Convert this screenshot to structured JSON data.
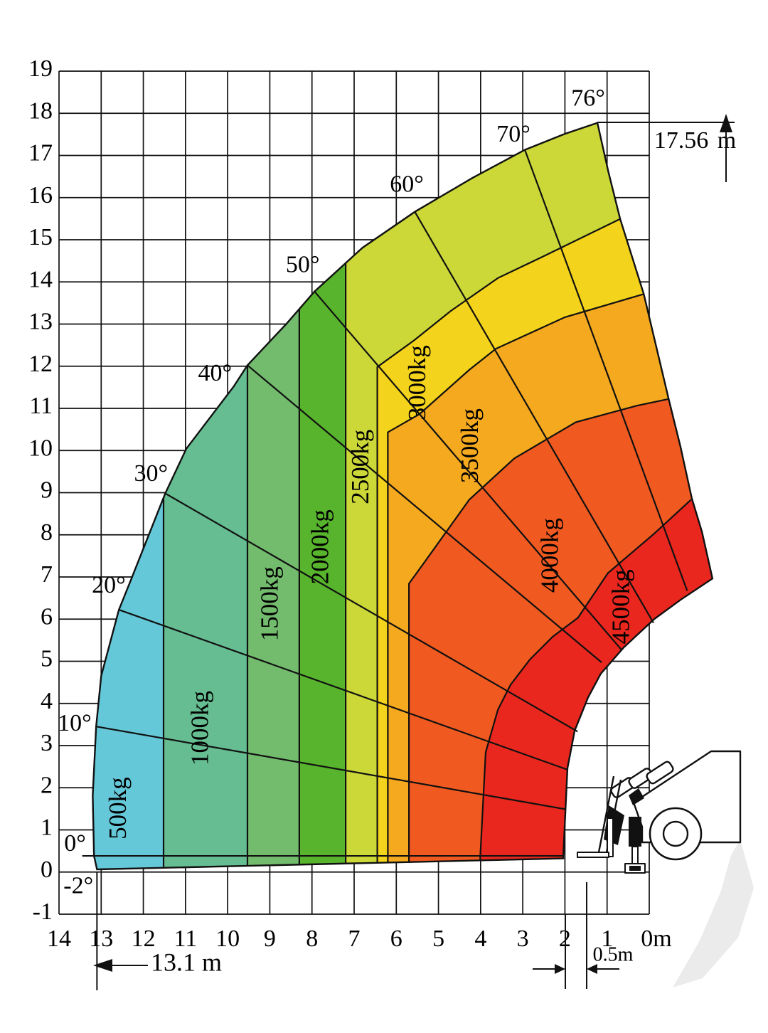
{
  "chart_data": {
    "type": "area",
    "subtype": "telehandler-load-capacity-fan-chart",
    "title": "",
    "xlabel": "",
    "ylabel": "",
    "x_axis": {
      "unit": "m",
      "tick_values": [
        14,
        13,
        12,
        11,
        10,
        9,
        8,
        7,
        6,
        5,
        4,
        3,
        2,
        1,
        0
      ],
      "tick_labels": [
        "14",
        "13",
        "12",
        "11",
        "10",
        "9",
        "8",
        "7",
        "6",
        "5",
        "4",
        "3",
        "2",
        "1",
        "0m"
      ],
      "range": [
        14,
        0
      ],
      "direction": "right-to-left"
    },
    "y_axis": {
      "unit": "m",
      "tick_values": [
        19,
        18,
        17,
        16,
        15,
        14,
        13,
        12,
        11,
        10,
        9,
        8,
        7,
        6,
        5,
        4,
        3,
        2,
        1,
        0,
        -1
      ],
      "tick_labels": [
        "19",
        "18",
        "17",
        "16",
        "15",
        "14",
        "13",
        "12",
        "11",
        "10",
        "9",
        "8",
        "7",
        "6",
        "5",
        "4",
        "3",
        "2",
        "1",
        "0",
        "-1"
      ],
      "range": [
        -1,
        19
      ]
    },
    "grid": true,
    "fan_outline": [
      [
        13.1,
        0.05
      ],
      [
        13.17,
        0.37
      ],
      [
        13.2,
        1.8
      ],
      [
        13.12,
        3.44
      ],
      [
        13.0,
        4.64
      ],
      [
        12.58,
        6.21
      ],
      [
        12.31,
        6.88
      ],
      [
        11.48,
        8.97
      ],
      [
        10.98,
        10.03
      ],
      [
        9.86,
        11.5
      ],
      [
        9.53,
        12.01
      ],
      [
        8.6,
        13.0
      ],
      [
        7.94,
        13.76
      ],
      [
        6.8,
        14.8
      ],
      [
        5.56,
        15.65
      ],
      [
        4.2,
        16.45
      ],
      [
        2.95,
        17.12
      ],
      [
        2.0,
        17.5
      ],
      [
        1.23,
        17.76
      ],
      [
        0.97,
        16.6
      ],
      [
        0.69,
        15.48
      ],
      [
        0.13,
        13.7
      ],
      [
        -0.46,
        11.21
      ],
      [
        -0.74,
        10.08
      ],
      [
        -1.01,
        8.85
      ],
      [
        -1.25,
        8.06
      ],
      [
        -1.5,
        6.95
      ],
      [
        -0.75,
        6.45
      ],
      [
        -0.12,
        5.99
      ],
      [
        0.61,
        5.31
      ],
      [
        1.15,
        4.69
      ],
      [
        1.45,
        4.13
      ],
      [
        1.77,
        3.34
      ],
      [
        1.94,
        2.45
      ],
      [
        2.04,
        0.37
      ],
      [
        2.04,
        0.31
      ]
    ],
    "zones": [
      {
        "capacity": "500kg",
        "color": "#65c8d8",
        "label_pos": [
          12.55,
          1.5
        ],
        "paint": "fan"
      },
      {
        "capacity": "1000kg",
        "color": "#66bd92",
        "label_pos": [
          10.6,
          3.4
        ],
        "paint": [
          [
            11.52,
            -1
          ],
          [
            11.52,
            19
          ],
          [
            -6,
            19
          ],
          [
            -6,
            -1
          ]
        ]
      },
      {
        "capacity": "1500kg",
        "color": "#73bc6e",
        "label_pos": [
          8.95,
          6.35
        ],
        "paint": [
          [
            9.53,
            -1
          ],
          [
            9.53,
            19
          ],
          [
            -6,
            19
          ],
          [
            -6,
            -1
          ]
        ]
      },
      {
        "capacity": "2000kg",
        "color": "#58b42c",
        "label_pos": [
          7.75,
          7.7
        ],
        "paint": [
          [
            8.3,
            -1
          ],
          [
            8.3,
            19
          ],
          [
            -6,
            19
          ],
          [
            -6,
            -1
          ]
        ]
      },
      {
        "capacity": "2500kg",
        "color": "#cbd838",
        "label_pos": [
          6.8,
          9.6
        ],
        "paint": [
          [
            7.2,
            -1
          ],
          [
            7.2,
            19
          ],
          [
            -6,
            19
          ],
          [
            -6,
            -1
          ]
        ]
      },
      {
        "capacity": "3000kg",
        "color": "#f3d31b",
        "label_pos": [
          5.45,
          11.6
        ],
        "paint": [
          [
            6.45,
            -1
          ],
          [
            6.45,
            11.97
          ],
          [
            5.58,
            12.6
          ],
          [
            4.72,
            13.29
          ],
          [
            3.59,
            14.08
          ],
          [
            2.5,
            14.6
          ],
          [
            0.69,
            15.48
          ],
          [
            -6,
            15.48
          ],
          [
            -6,
            -1
          ]
        ]
      },
      {
        "capacity": "3500kg",
        "color": "#f5a91e",
        "label_pos": [
          4.2,
          10.1
        ],
        "paint": [
          [
            6.2,
            -1
          ],
          [
            6.2,
            10.42
          ],
          [
            5.45,
            10.85
          ],
          [
            4.27,
            11.9
          ],
          [
            3.64,
            12.4
          ],
          [
            2.0,
            13.15
          ],
          [
            0.13,
            13.7
          ],
          [
            -6,
            13.7
          ],
          [
            -6,
            -1
          ]
        ]
      },
      {
        "capacity": "4000kg",
        "color": "#f05a21",
        "label_pos": [
          2.3,
          7.5
        ],
        "paint": [
          [
            5.7,
            -1
          ],
          [
            5.7,
            6.83
          ],
          [
            5.33,
            7.34
          ],
          [
            4.27,
            8.82
          ],
          [
            3.2,
            9.8
          ],
          [
            1.74,
            10.66
          ],
          [
            0.3,
            11.05
          ],
          [
            -0.46,
            11.21
          ],
          [
            -6,
            11.21
          ],
          [
            -6,
            -1
          ]
        ]
      },
      {
        "capacity": "4500kg",
        "color": "#e9271e",
        "label_pos": [
          0.62,
          6.28
        ],
        "paint": [
          [
            4.01,
            -1
          ],
          [
            4.01,
            0.34
          ],
          [
            3.88,
            2.83
          ],
          [
            3.59,
            3.84
          ],
          [
            3.29,
            4.43
          ],
          [
            2.83,
            5.03
          ],
          [
            2.29,
            5.57
          ],
          [
            1.69,
            6.02
          ],
          [
            0.98,
            7.08
          ],
          [
            -0.1,
            8.0
          ],
          [
            -0.99,
            8.82
          ],
          [
            -6,
            8.82
          ],
          [
            -6,
            -1
          ]
        ]
      }
    ],
    "zone_boundaries": [
      [
        [
          11.52,
          -0.5
        ],
        [
          11.52,
          9.1
        ]
      ],
      [
        [
          9.53,
          -0.5
        ],
        [
          9.53,
          12.1
        ]
      ],
      [
        [
          8.3,
          -0.5
        ],
        [
          8.3,
          13.55
        ]
      ],
      [
        [
          7.2,
          -0.5
        ],
        [
          7.2,
          14.6
        ]
      ],
      [
        [
          6.45,
          -0.5
        ],
        [
          6.45,
          11.97
        ],
        [
          5.58,
          12.6
        ],
        [
          4.72,
          13.29
        ],
        [
          3.59,
          14.08
        ],
        [
          2.5,
          14.6
        ],
        [
          0.69,
          15.48
        ]
      ],
      [
        [
          6.2,
          -0.5
        ],
        [
          6.2,
          10.42
        ],
        [
          5.45,
          10.85
        ],
        [
          4.27,
          11.9
        ],
        [
          3.64,
          12.4
        ],
        [
          2.0,
          13.15
        ],
        [
          0.13,
          13.7
        ]
      ],
      [
        [
          5.7,
          -0.5
        ],
        [
          5.7,
          6.83
        ],
        [
          5.33,
          7.34
        ],
        [
          4.27,
          8.82
        ],
        [
          3.2,
          9.8
        ],
        [
          1.74,
          10.66
        ],
        [
          0.3,
          11.05
        ],
        [
          -0.46,
          11.21
        ]
      ],
      [
        [
          4.01,
          -0.5
        ],
        [
          4.01,
          0.34
        ],
        [
          3.88,
          2.83
        ],
        [
          3.59,
          3.84
        ],
        [
          3.29,
          4.43
        ],
        [
          2.83,
          5.03
        ],
        [
          2.29,
          5.57
        ],
        [
          1.69,
          6.02
        ],
        [
          0.98,
          7.08
        ],
        [
          -0.1,
          8.0
        ],
        [
          -0.99,
          8.82
        ]
      ]
    ],
    "boom_angle_lines": [
      {
        "deg": 0,
        "from": [
          13.45,
          0.37
        ],
        "to": [
          2.04,
          0.37
        ]
      },
      {
        "deg": 10,
        "from": [
          13.12,
          3.44
        ],
        "to": [
          2.0,
          1.48
        ]
      },
      {
        "deg": 20,
        "from": [
          12.58,
          6.21
        ],
        "to": [
          1.95,
          2.42
        ]
      },
      {
        "deg": 30,
        "from": [
          11.48,
          8.97
        ],
        "to": [
          1.7,
          3.32
        ]
      },
      {
        "deg": 40,
        "from": [
          9.53,
          12.01
        ],
        "to": [
          1.13,
          4.96
        ]
      },
      {
        "deg": 50,
        "from": [
          7.94,
          13.76
        ],
        "to": [
          0.65,
          5.25
        ]
      },
      {
        "deg": 60,
        "from": [
          5.56,
          15.65
        ],
        "to": [
          -0.1,
          5.9
        ]
      },
      {
        "deg": 70,
        "from": [
          2.95,
          17.12
        ],
        "to": [
          -0.9,
          6.66
        ]
      }
    ],
    "angle_labels": [
      {
        "text": "-2°",
        "pos": [
          13.54,
          -0.38
        ]
      },
      {
        "text": "0°",
        "pos": [
          13.62,
          0.62
        ]
      },
      {
        "text": "10°",
        "pos": [
          13.63,
          3.47
        ]
      },
      {
        "text": "20°",
        "pos": [
          12.82,
          6.75
        ]
      },
      {
        "text": "30°",
        "pos": [
          11.82,
          9.4
        ]
      },
      {
        "text": "40°",
        "pos": [
          10.3,
          11.78
        ]
      },
      {
        "text": "50°",
        "pos": [
          8.22,
          14.35
        ]
      },
      {
        "text": "60°",
        "pos": [
          5.75,
          16.26
        ]
      },
      {
        "text": "70°",
        "pos": [
          3.22,
          17.45
        ]
      },
      {
        "text": "76°",
        "pos": [
          1.45,
          18.3
        ]
      }
    ],
    "annotations": {
      "max_height": {
        "value": "17.56",
        "unit": "m"
      },
      "max_reach": {
        "text": "13.1 m",
        "at_x": 13.1
      },
      "front_offset": {
        "text": "0.5m",
        "between_x": [
          2.0,
          1.5
        ]
      }
    }
  }
}
